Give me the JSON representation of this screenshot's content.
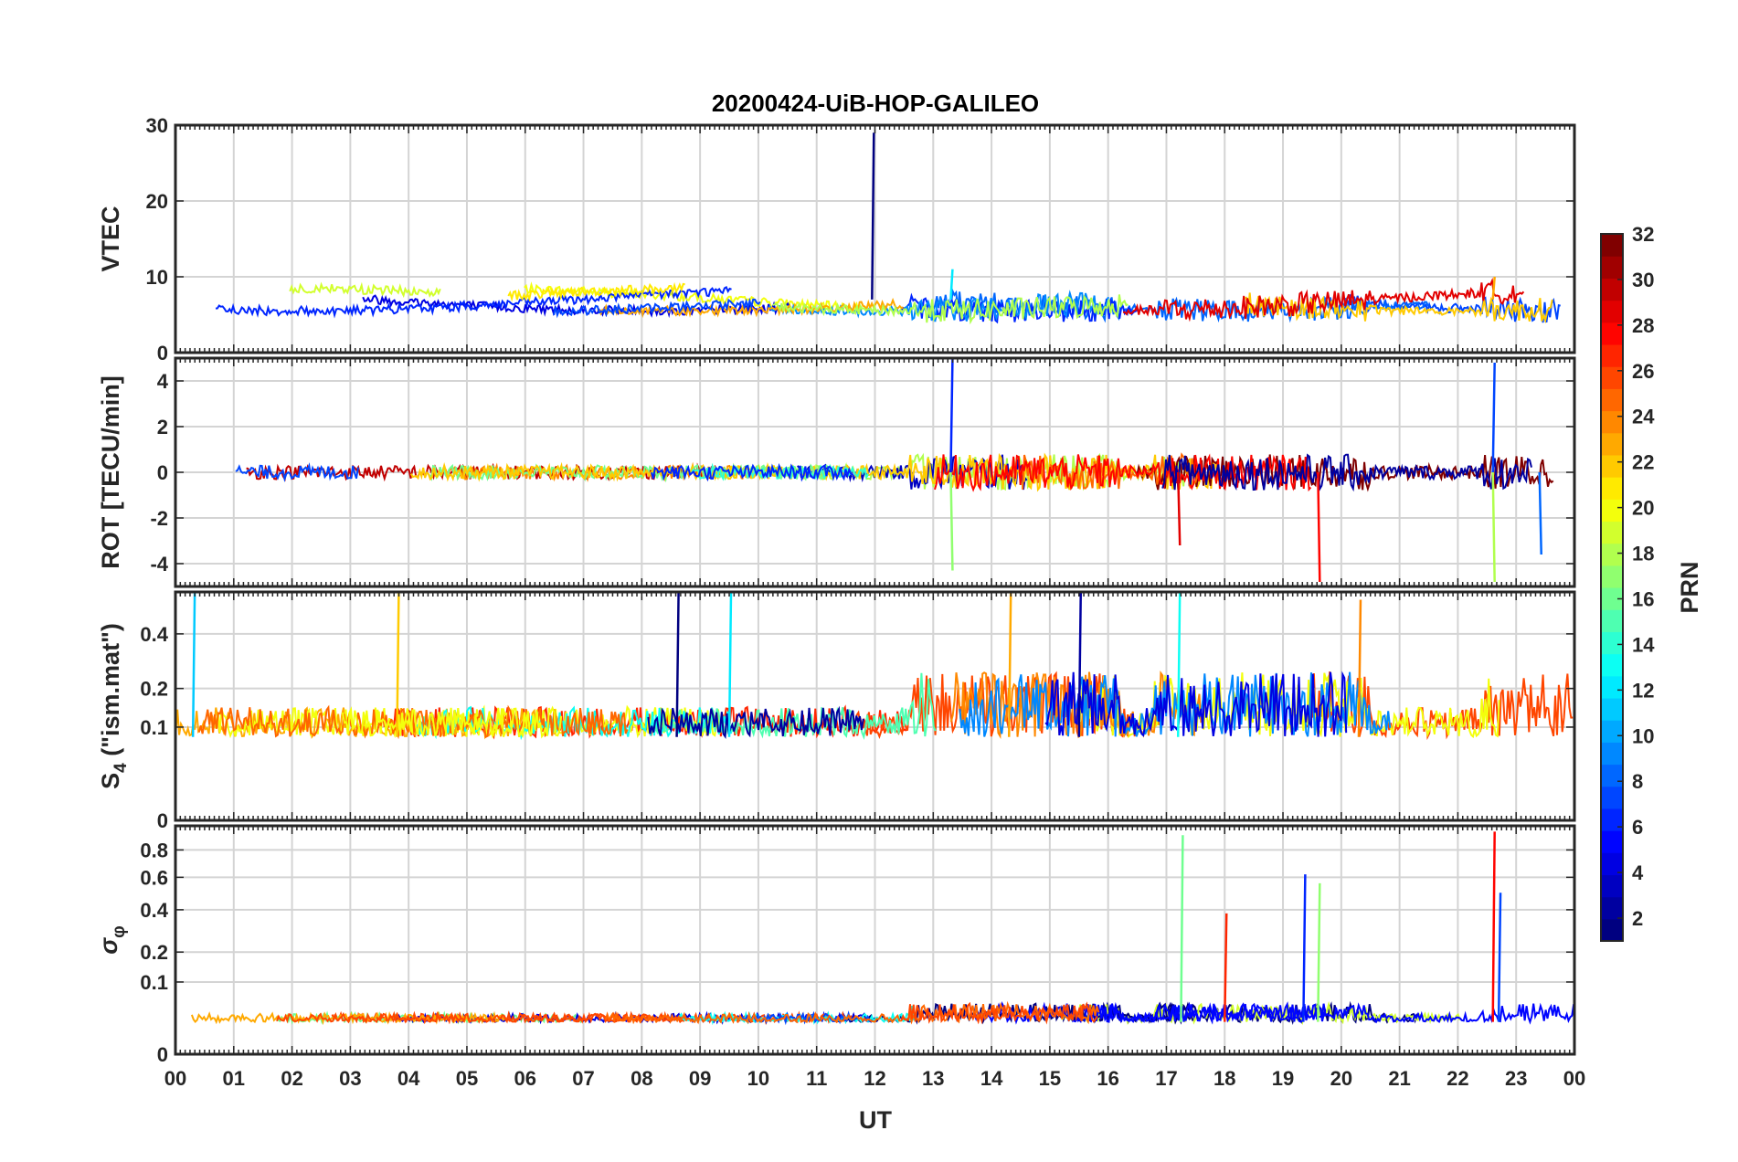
{
  "chart_data": {
    "type": "line",
    "title": "20200424-UiB-HOP-GALILEO",
    "xlabel": "UT",
    "x_range_hours": [
      0,
      24
    ],
    "x_tick_labels": [
      "00",
      "01",
      "02",
      "03",
      "04",
      "05",
      "06",
      "07",
      "08",
      "09",
      "10",
      "11",
      "12",
      "13",
      "14",
      "15",
      "16",
      "17",
      "18",
      "19",
      "20",
      "21",
      "22",
      "23",
      "00"
    ],
    "grid": true,
    "colorbar": {
      "label": "PRN",
      "range": [
        1,
        32
      ],
      "colormap": "jet",
      "tick_labels": [
        "2",
        "4",
        "6",
        "8",
        "10",
        "12",
        "14",
        "16",
        "18",
        "20",
        "22",
        "24",
        "26",
        "28",
        "30",
        "32"
      ]
    },
    "panels": [
      {
        "name": "VTEC",
        "ylabel": "VTEC",
        "ylim": [
          0,
          30
        ],
        "y_ticks": [
          0,
          10,
          20,
          30
        ],
        "y_tick_labels": [
          "0",
          "10",
          "20",
          "30"
        ],
        "baseline": 7,
        "noise": 1.2,
        "notable_spikes": [
          {
            "time_ut": 11.95,
            "value": 29
          },
          {
            "time_ut": 13.3,
            "value": 11
          },
          {
            "time_ut": 22.6,
            "value": 10
          }
        ]
      },
      {
        "name": "ROT",
        "ylabel": "ROT [TECU/min]",
        "ylim": [
          -5,
          5
        ],
        "y_ticks": [
          -4,
          -2,
          0,
          2,
          4
        ],
        "y_tick_labels": [
          "-4",
          "-2",
          "0",
          "2",
          "4"
        ],
        "baseline": 0,
        "noise": 0.3,
        "notable_spikes": [
          {
            "time_ut": 13.3,
            "value": 5
          },
          {
            "time_ut": 13.3,
            "value": -4.3
          },
          {
            "time_ut": 19.6,
            "value": -4.8
          },
          {
            "time_ut": 22.6,
            "value": 4.8
          },
          {
            "time_ut": 22.6,
            "value": -4.8
          },
          {
            "time_ut": 17.2,
            "value": -3.2
          },
          {
            "time_ut": 23.4,
            "value": -3.6
          }
        ]
      },
      {
        "name": "S4",
        "ylabel_main": "S",
        "ylabel_sub": "4",
        "ylabel_rest": " (\"ism.mat\")",
        "ylim": [
          0,
          0.6
        ],
        "scale": "sqrt",
        "y_ticks": [
          0,
          0.1,
          0.2,
          0.4
        ],
        "y_tick_labels": [
          "0",
          "0.1",
          "0.2",
          "0.4"
        ],
        "baseline": 0.08,
        "noise": 0.06,
        "notable_spikes": [
          {
            "time_ut": 0.3,
            "value": 0.6
          },
          {
            "time_ut": 3.8,
            "value": 0.6
          },
          {
            "time_ut": 8.6,
            "value": 0.6
          },
          {
            "time_ut": 9.5,
            "value": 0.6
          },
          {
            "time_ut": 14.3,
            "value": 0.6
          },
          {
            "time_ut": 15.5,
            "value": 0.6
          },
          {
            "time_ut": 17.2,
            "value": 0.6
          },
          {
            "time_ut": 20.3,
            "value": 0.56
          }
        ]
      },
      {
        "name": "sigma-phi",
        "ylabel_main": "σ",
        "ylabel_sub": "φ",
        "ylim": [
          0,
          1
        ],
        "scale": "sqrt",
        "y_ticks": [
          0,
          0.1,
          0.2,
          0.4,
          0.6,
          0.8
        ],
        "y_tick_labels": [
          "0",
          "0.1",
          "0.2",
          "0.4",
          "0.6",
          "0.8"
        ],
        "baseline": 0.02,
        "noise": 0.01,
        "notable_spikes": [
          {
            "time_ut": 17.25,
            "value": 0.92
          },
          {
            "time_ut": 18.0,
            "value": 0.38
          },
          {
            "time_ut": 19.35,
            "value": 0.62
          },
          {
            "time_ut": 19.6,
            "value": 0.56
          },
          {
            "time_ut": 22.6,
            "value": 0.95
          },
          {
            "time_ut": 22.7,
            "value": 0.5
          }
        ]
      }
    ]
  }
}
